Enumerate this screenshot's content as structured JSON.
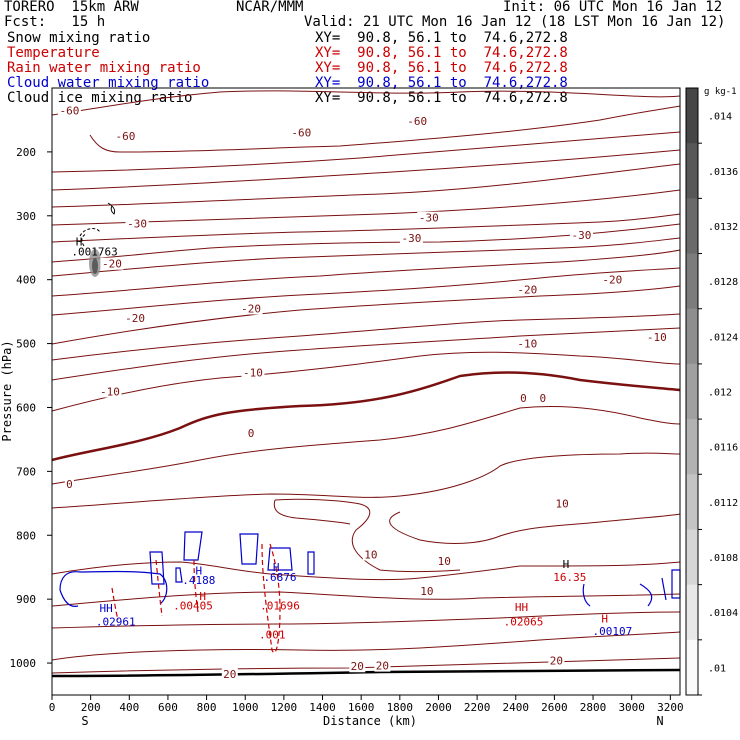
{
  "header": {
    "model": "TORERO  15km ARW",
    "center": "NCAR/MMM",
    "init": "Init: 06 UTC Mon 16 Jan 12",
    "fcst": "Fcst:   15 h",
    "valid": "Valid: 21 UTC Mon 16 Jan 12 (18 LST Mon 16 Jan 12)"
  },
  "fields": [
    {
      "name": "Snow mixing ratio",
      "xy": "XY=  90.8, 56.1 to  74.6,272.8",
      "color": "#000000"
    },
    {
      "name": "Temperature",
      "xy": "XY=  90.8, 56.1 to  74.6,272.8",
      "color": "#cc0000"
    },
    {
      "name": "Rain water mixing ratio",
      "xy": "XY=  90.8, 56.1 to  74.6,272.8",
      "color": "#cc0000"
    },
    {
      "name": "Cloud water mixing ratio",
      "xy": "XY=  90.8, 56.1 to  74.6,272.8",
      "color": "#0000cc"
    },
    {
      "name": "Cloud ice mixing ratio",
      "xy": "XY=  90.8, 56.1 to  74.6,272.8",
      "color": "#000000"
    }
  ],
  "chart_data": {
    "type": "contour",
    "xlabel": "Distance (km)",
    "ylabel": "Pressure (hPa)",
    "xlim": [
      0,
      3250
    ],
    "ylim": [
      1050,
      100
    ],
    "xticks": [
      0,
      200,
      400,
      600,
      800,
      1000,
      1200,
      1400,
      1600,
      1800,
      2000,
      2200,
      2400,
      2600,
      2800,
      3000,
      3200
    ],
    "yticks": [
      200,
      300,
      400,
      500,
      600,
      700,
      800,
      900,
      1000
    ],
    "x_end_labels": {
      "left": "S",
      "right": "N"
    },
    "colorbar": {
      "unit": "g kg-1",
      "ticks": [
        ".014",
        ".0136",
        ".0132",
        ".0128",
        ".0124",
        ".012",
        ".0116",
        ".0112",
        ".0108",
        ".0104",
        ".01"
      ]
    },
    "temperature_labels": [
      {
        "text": "-60",
        "x": 90,
        "p": 135
      },
      {
        "text": "-60",
        "x": 380,
        "p": 175
      },
      {
        "text": "-60",
        "x": 1290,
        "p": 170
      },
      {
        "text": "-60",
        "x": 1890,
        "p": 152
      },
      {
        "text": "-30",
        "x": 440,
        "p": 312
      },
      {
        "text": "-30",
        "x": 1860,
        "p": 335
      },
      {
        "text": "-30",
        "x": 2740,
        "p": 330
      },
      {
        "text": "-30",
        "x": 1950,
        "p": 303
      },
      {
        "text": "-20",
        "x": 310,
        "p": 375
      },
      {
        "text": "-20",
        "x": 430,
        "p": 460
      },
      {
        "text": "-20",
        "x": 1030,
        "p": 445
      },
      {
        "text": "-20",
        "x": 2460,
        "p": 415
      },
      {
        "text": "-20",
        "x": 2900,
        "p": 400
      },
      {
        "text": "-10",
        "x": 300,
        "p": 575
      },
      {
        "text": "-10",
        "x": 1040,
        "p": 545
      },
      {
        "text": "-10",
        "x": 2460,
        "p": 500
      },
      {
        "text": "-10",
        "x": 3130,
        "p": 490
      },
      {
        "text": "0",
        "x": 90,
        "p": 720
      },
      {
        "text": "0",
        "x": 1030,
        "p": 640
      },
      {
        "text": "0",
        "x": 2440,
        "p": 585
      },
      {
        "text": "0",
        "x": 2540,
        "p": 585
      },
      {
        "text": "10",
        "x": 1650,
        "p": 830
      },
      {
        "text": "10",
        "x": 2030,
        "p": 840
      },
      {
        "text": "10",
        "x": 2640,
        "p": 750
      },
      {
        "text": "10",
        "x": 1940,
        "p": 887
      },
      {
        "text": "20",
        "x": 1580,
        "p": 1005
      },
      {
        "text": "20",
        "x": 1710,
        "p": 1004
      },
      {
        "text": "20",
        "x": 2610,
        "p": 996
      },
      {
        "text": "20",
        "x": 920,
        "p": 1017
      }
    ],
    "max_labels": [
      {
        "text": "H",
        "x": 140,
        "p": 340,
        "color": "#000000"
      },
      {
        "text": ".001763",
        "x": 220,
        "p": 356,
        "color": "#000000"
      },
      {
        "text": "H",
        "x": 760,
        "p": 855,
        "color": "#0000cc"
      },
      {
        "text": ".4188",
        "x": 760,
        "p": 870,
        "color": "#0000cc"
      },
      {
        "text": "H",
        "x": 780,
        "p": 895,
        "color": "#cc0000"
      },
      {
        "text": ".00405",
        "x": 730,
        "p": 910,
        "color": "#cc0000"
      },
      {
        "text": "H",
        "x": 1160,
        "p": 850,
        "color": "#0000cc"
      },
      {
        "text": ".6876",
        "x": 1180,
        "p": 865,
        "color": "#0000cc"
      },
      {
        "text": ".01696",
        "x": 1180,
        "p": 910,
        "color": "#cc0000"
      },
      {
        "text": ".001",
        "x": 1140,
        "p": 955,
        "color": "#cc0000"
      },
      {
        "text": "HH",
        "x": 280,
        "p": 914,
        "color": "#0000cc"
      },
      {
        "text": ".02961",
        "x": 330,
        "p": 935,
        "color": "#0000cc"
      },
      {
        "text": "H",
        "x": 2660,
        "p": 845,
        "color": "#000000"
      },
      {
        "text": "16.35",
        "x": 2680,
        "p": 865,
        "color": "#cc0000"
      },
      {
        "text": "HH",
        "x": 2430,
        "p": 912,
        "color": "#cc0000"
      },
      {
        "text": ".02065",
        "x": 2440,
        "p": 935,
        "color": "#cc0000"
      },
      {
        "text": "H",
        "x": 2860,
        "p": 930,
        "color": "#cc0000"
      },
      {
        "text": ".00107",
        "x": 2900,
        "p": 950,
        "color": "#0000cc"
      }
    ]
  }
}
